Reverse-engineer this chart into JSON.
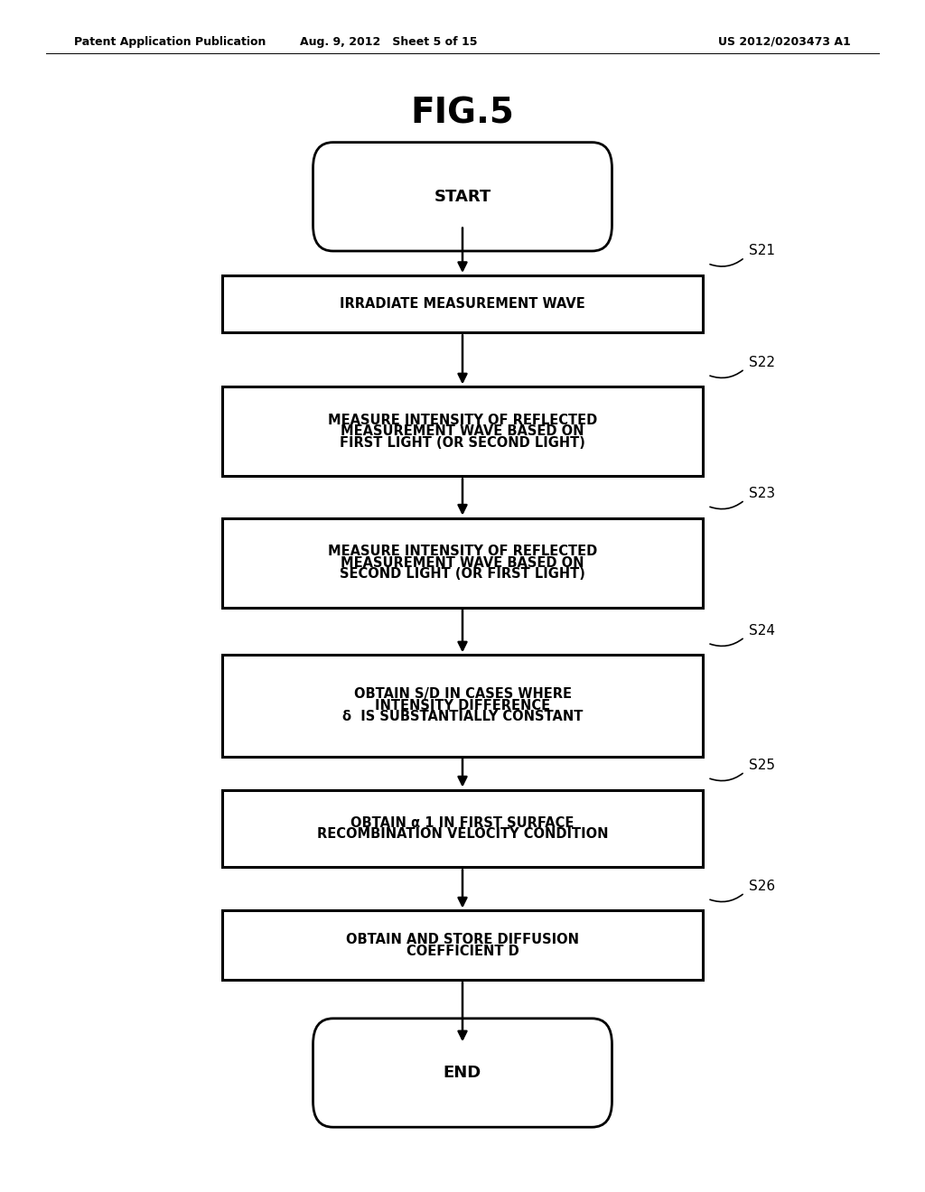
{
  "title": "FIG.5",
  "header_left": "Patent Application Publication",
  "header_mid": "Aug. 9, 2012   Sheet 5 of 15",
  "header_right": "US 2012/0203473 A1",
  "start_label": "START",
  "end_label": "END",
  "steps": [
    {
      "id": "S21",
      "lines": [
        "IRRADIATE MEASUREMENT WAVE"
      ]
    },
    {
      "id": "S22",
      "lines": [
        "MEASURE INTENSITY OF REFLECTED",
        "MEASUREMENT WAVE BASED ON",
        "FIRST LIGHT (OR SECOND LIGHT)"
      ]
    },
    {
      "id": "S23",
      "lines": [
        "MEASURE INTENSITY OF REFLECTED",
        "MEASUREMENT WAVE BASED ON",
        "SECOND LIGHT (OR FIRST LIGHT)"
      ]
    },
    {
      "id": "S24",
      "lines": [
        "OBTAIN S/D IN CASES WHERE",
        "INTENSITY DIFFERENCE",
        "δ  IS SUBSTANTIALLY CONSTANT"
      ]
    },
    {
      "id": "S25",
      "lines": [
        "OBTAIN α 1 IN FIRST SURFACE",
        "RECOMBINATION VELOCITY CONDITION"
      ]
    },
    {
      "id": "S26",
      "lines": [
        "OBTAIN AND STORE DIFFUSION",
        "COEFFICIENT D"
      ]
    }
  ],
  "bg_color": "#ffffff",
  "box_edge_color": "#000000",
  "text_color": "#000000",
  "arrow_color": "#000000"
}
